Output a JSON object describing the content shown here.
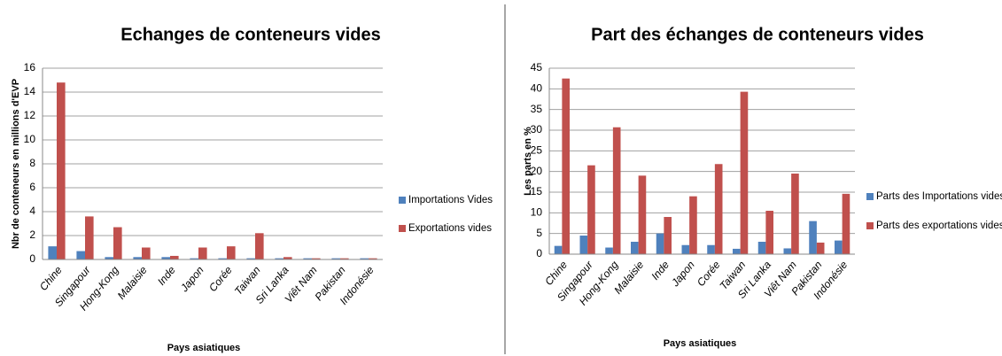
{
  "chart_data": [
    {
      "type": "bar",
      "title": "Echanges de conteneurs vides",
      "y_label": "Nbr de conteneurs en millions d'EVP",
      "x_label": "Pays asiatiques",
      "categories": [
        "Chine",
        "Singapour",
        "Hong-Kong",
        "Malaisie",
        "Inde",
        "Japon",
        "Corée",
        "Taiwan",
        "Sri Lanka",
        "Viêt Nam",
        "Pakistan",
        "Indonésie"
      ],
      "series": [
        {
          "name": "Importations Vides",
          "color": "#4f81bd",
          "values": [
            1.1,
            0.7,
            0.2,
            0.2,
            0.2,
            0.1,
            0.1,
            0.1,
            0.1,
            0.1,
            0.1,
            0.1
          ]
        },
        {
          "name": "Exportations vides",
          "color": "#c0504d",
          "values": [
            14.8,
            3.6,
            2.7,
            1.0,
            0.3,
            1.0,
            1.1,
            2.2,
            0.2,
            0.1,
            0.1,
            0.1
          ]
        }
      ],
      "ylim": [
        0,
        16
      ],
      "yticks": [
        0,
        2,
        4,
        6,
        8,
        10,
        12,
        14,
        16
      ],
      "grid": true,
      "legend": "right"
    },
    {
      "type": "bar",
      "title": "Part des échanges de conteneurs vides",
      "y_label": "Les parts en %",
      "x_label": "Pays asiatiques",
      "categories": [
        "Chine",
        "Singapour",
        "Hong-Kong",
        "Malaisie",
        "Inde",
        "Japon",
        "Corée",
        "Taiwan",
        "Sri Lanka",
        "Viêt Nam",
        "Pakistan",
        "Indonésie"
      ],
      "series": [
        {
          "name": "Parts des Importations vides",
          "color": "#4f81bd",
          "values": [
            2,
            4.5,
            1.6,
            3,
            5,
            2.2,
            2.2,
            1.3,
            3,
            1.4,
            8,
            3.3
          ]
        },
        {
          "name": "Parts des exportations vides",
          "color": "#c0504d",
          "values": [
            42.5,
            21.5,
            30.7,
            19,
            9,
            14,
            21.8,
            39.3,
            10.5,
            19.5,
            2.8,
            14.6
          ]
        }
      ],
      "ylim": [
        0,
        45
      ],
      "yticks": [
        0,
        5,
        10,
        15,
        20,
        25,
        30,
        35,
        40,
        45
      ],
      "grid": true,
      "legend": "right"
    }
  ]
}
